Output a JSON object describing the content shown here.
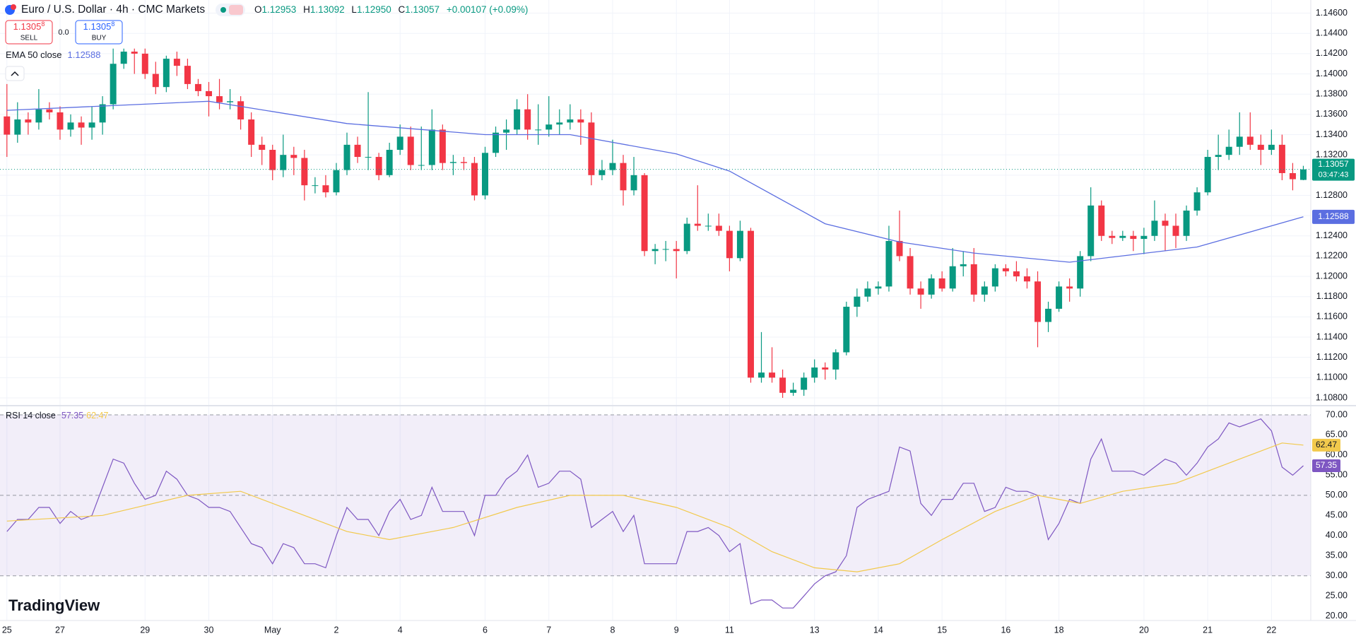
{
  "header": {
    "symbol": "Euro / U.S. Dollar · 4h · CMC Markets",
    "ohlc": [
      {
        "k": "O",
        "v": "1.12953"
      },
      {
        "k": "H",
        "v": "1.13092"
      },
      {
        "k": "L",
        "v": "1.12950"
      },
      {
        "k": "C",
        "v": "1.13057"
      }
    ],
    "change": "+0.00107 (+0.09%)"
  },
  "trade": {
    "sell_price": "1.1305",
    "sell_sup": "8",
    "sell": "SELL",
    "spread": "0.0",
    "buy_price": "1.1305",
    "buy_sup": "8",
    "buy": "BUY"
  },
  "countdown": "03:47:43",
  "logo": "TradingView",
  "chart_data": [
    {
      "type": "candlestick",
      "up_color": "#089981",
      "down_color": "#f23645",
      "candles": [
        [
          1.1358,
          1.139,
          1.1318,
          1.134
        ],
        [
          1.134,
          1.1372,
          1.1332,
          1.1355
        ],
        [
          1.1355,
          1.1362,
          1.134,
          1.1352
        ],
        [
          1.1352,
          1.1385,
          1.1345,
          1.1365
        ],
        [
          1.1365,
          1.1372,
          1.1355,
          1.1362
        ],
        [
          1.1362,
          1.1368,
          1.1335,
          1.1345
        ],
        [
          1.1345,
          1.136,
          1.1338,
          1.1352
        ],
        [
          1.1352,
          1.1358,
          1.133,
          1.1347
        ],
        [
          1.1347,
          1.1368,
          1.1335,
          1.1352
        ],
        [
          1.1352,
          1.1378,
          1.134,
          1.137
        ],
        [
          1.137,
          1.1425,
          1.1365,
          1.141
        ],
        [
          1.141,
          1.1425,
          1.1405,
          1.1422
        ],
        [
          1.1422,
          1.1425,
          1.14,
          1.142
        ],
        [
          1.142,
          1.1425,
          1.1395,
          1.14
        ],
        [
          1.14,
          1.1412,
          1.138,
          1.1387
        ],
        [
          1.1387,
          1.1418,
          1.1382,
          1.1415
        ],
        [
          1.1415,
          1.1422,
          1.1398,
          1.1408
        ],
        [
          1.1408,
          1.1415,
          1.1385,
          1.139
        ],
        [
          1.139,
          1.1395,
          1.1378,
          1.1383
        ],
        [
          1.1383,
          1.1392,
          1.1358,
          1.1378
        ],
        [
          1.1378,
          1.1395,
          1.1365,
          1.1372
        ],
        [
          1.1372,
          1.1385,
          1.1365,
          1.1373
        ],
        [
          1.1373,
          1.1378,
          1.1345,
          1.1355
        ],
        [
          1.1355,
          1.1362,
          1.1318,
          1.133
        ],
        [
          1.133,
          1.1338,
          1.131,
          1.1325
        ],
        [
          1.1325,
          1.133,
          1.1295,
          1.1305
        ],
        [
          1.1305,
          1.134,
          1.1298,
          1.132
        ],
        [
          1.132,
          1.1328,
          1.13,
          1.1317
        ],
        [
          1.1317,
          1.1325,
          1.1275,
          1.129
        ],
        [
          1.129,
          1.1298,
          1.1282,
          1.129
        ],
        [
          1.129,
          1.13,
          1.1278,
          1.1283
        ],
        [
          1.1283,
          1.1312,
          1.128,
          1.1305
        ],
        [
          1.1305,
          1.1342,
          1.13,
          1.133
        ],
        [
          1.133,
          1.1338,
          1.1312,
          1.1318
        ],
        [
          1.1318,
          1.1382,
          1.1305,
          1.1318
        ],
        [
          1.1318,
          1.1322,
          1.1295,
          1.13
        ],
        [
          1.13,
          1.1332,
          1.1298,
          1.1325
        ],
        [
          1.1325,
          1.135,
          1.132,
          1.1338
        ],
        [
          1.1338,
          1.1348,
          1.1305,
          1.131
        ],
        [
          1.131,
          1.1348,
          1.1305,
          1.131
        ],
        [
          1.131,
          1.1365,
          1.1305,
          1.1345
        ],
        [
          1.1345,
          1.135,
          1.1305,
          1.1312
        ],
        [
          1.1312,
          1.132,
          1.13,
          1.1313
        ],
        [
          1.1313,
          1.1318,
          1.1305,
          1.1312
        ],
        [
          1.1312,
          1.1318,
          1.1275,
          1.128
        ],
        [
          1.128,
          1.1328,
          1.1276,
          1.1322
        ],
        [
          1.1322,
          1.1348,
          1.1318,
          1.1342
        ],
        [
          1.1342,
          1.1355,
          1.1325,
          1.1345
        ],
        [
          1.1345,
          1.1375,
          1.134,
          1.1365
        ],
        [
          1.1365,
          1.138,
          1.1335,
          1.1345
        ],
        [
          1.1345,
          1.137,
          1.133,
          1.1345
        ],
        [
          1.1345,
          1.1378,
          1.1338,
          1.135
        ],
        [
          1.135,
          1.1365,
          1.134,
          1.1352
        ],
        [
          1.1352,
          1.137,
          1.1345,
          1.1355
        ],
        [
          1.1355,
          1.1365,
          1.133,
          1.1352
        ],
        [
          1.1352,
          1.1362,
          1.129,
          1.13
        ],
        [
          1.13,
          1.1315,
          1.1295,
          1.1305
        ],
        [
          1.1305,
          1.1335,
          1.13,
          1.1312
        ],
        [
          1.1312,
          1.132,
          1.127,
          1.1285
        ],
        [
          1.1285,
          1.1318,
          1.128,
          1.13
        ],
        [
          1.13,
          1.1302,
          1.122,
          1.1225
        ],
        [
          1.1225,
          1.1232,
          1.1212,
          1.1227
        ],
        [
          1.1227,
          1.1235,
          1.1215,
          1.1227
        ],
        [
          1.1227,
          1.1235,
          1.1198,
          1.1225
        ],
        [
          1.1225,
          1.1258,
          1.1222,
          1.1252
        ],
        [
          1.1252,
          1.129,
          1.1245,
          1.125
        ],
        [
          1.125,
          1.1262,
          1.1245,
          1.125
        ],
        [
          1.125,
          1.1262,
          1.124,
          1.1245
        ],
        [
          1.1245,
          1.125,
          1.1205,
          1.1218
        ],
        [
          1.1218,
          1.1255,
          1.1215,
          1.1245
        ],
        [
          1.1245,
          1.1248,
          1.1095,
          1.11
        ],
        [
          1.11,
          1.1145,
          1.1095,
          1.1105
        ],
        [
          1.1105,
          1.113,
          1.1095,
          1.11
        ],
        [
          1.11,
          1.1108,
          1.108,
          1.1085
        ],
        [
          1.1085,
          1.1095,
          1.1082,
          1.1088
        ],
        [
          1.1088,
          1.1105,
          1.1082,
          1.11
        ],
        [
          1.11,
          1.1118,
          1.1095,
          1.111
        ],
        [
          1.111,
          1.1115,
          1.1098,
          1.1108
        ],
        [
          1.1108,
          1.1128,
          1.1098,
          1.1125
        ],
        [
          1.1125,
          1.1175,
          1.1122,
          1.117
        ],
        [
          1.117,
          1.1188,
          1.116,
          1.118
        ],
        [
          1.118,
          1.1195,
          1.1175,
          1.1188
        ],
        [
          1.1188,
          1.1195,
          1.1182,
          1.119
        ],
        [
          1.119,
          1.125,
          1.1185,
          1.1235
        ],
        [
          1.1235,
          1.1265,
          1.1215,
          1.122
        ],
        [
          1.122,
          1.1228,
          1.1182,
          1.1188
        ],
        [
          1.1188,
          1.1195,
          1.1168,
          1.1182
        ],
        [
          1.1182,
          1.1202,
          1.1178,
          1.1198
        ],
        [
          1.1198,
          1.1205,
          1.1185,
          1.1188
        ],
        [
          1.1188,
          1.1228,
          1.1185,
          1.121
        ],
        [
          1.121,
          1.1225,
          1.12,
          1.1212
        ],
        [
          1.1212,
          1.1228,
          1.1175,
          1.1182
        ],
        [
          1.1182,
          1.1195,
          1.1175,
          1.119
        ],
        [
          1.119,
          1.1212,
          1.1185,
          1.1208
        ],
        [
          1.1208,
          1.1212,
          1.12,
          1.1205
        ],
        [
          1.1205,
          1.1215,
          1.1195,
          1.12
        ],
        [
          1.12,
          1.1208,
          1.1188,
          1.1195
        ],
        [
          1.1195,
          1.1205,
          1.113,
          1.1155
        ],
        [
          1.1155,
          1.1175,
          1.1145,
          1.1168
        ],
        [
          1.1168,
          1.1195,
          1.1165,
          1.119
        ],
        [
          1.119,
          1.1198,
          1.1175,
          1.1188
        ],
        [
          1.1188,
          1.1225,
          1.118,
          1.122
        ],
        [
          1.122,
          1.1288,
          1.1215,
          1.127
        ],
        [
          1.127,
          1.1275,
          1.1235,
          1.124
        ],
        [
          1.124,
          1.1245,
          1.1232,
          1.1238
        ],
        [
          1.1238,
          1.1245,
          1.1235,
          1.124
        ],
        [
          1.124,
          1.1245,
          1.1225,
          1.1237
        ],
        [
          1.1237,
          1.1248,
          1.1222,
          1.124
        ],
        [
          1.124,
          1.1275,
          1.1235,
          1.1255
        ],
        [
          1.1255,
          1.1262,
          1.1225,
          1.125
        ],
        [
          1.125,
          1.1262,
          1.1228,
          1.124
        ],
        [
          1.124,
          1.127,
          1.1235,
          1.1265
        ],
        [
          1.1265,
          1.1288,
          1.126,
          1.1283
        ],
        [
          1.1283,
          1.1325,
          1.128,
          1.1318
        ],
        [
          1.1318,
          1.134,
          1.1305,
          1.132
        ],
        [
          1.132,
          1.1345,
          1.1315,
          1.1328
        ],
        [
          1.1328,
          1.1362,
          1.132,
          1.1338
        ],
        [
          1.1338,
          1.1362,
          1.1325,
          1.133
        ],
        [
          1.133,
          1.134,
          1.131,
          1.1325
        ],
        [
          1.1325,
          1.1345,
          1.132,
          1.133
        ],
        [
          1.133,
          1.134,
          1.1295,
          1.1302
        ],
        [
          1.1302,
          1.1312,
          1.1285,
          1.1296
        ],
        [
          1.12953,
          1.13092,
          1.1295,
          1.13057
        ]
      ],
      "series": [
        {
          "name": "EMA 50 close",
          "color": "#5b6ee1",
          "x": [
            0,
            19,
            32,
            45,
            53,
            63,
            68,
            77,
            84,
            91,
            100,
            112,
            122
          ],
          "values": [
            1.1364,
            1.1373,
            1.1351,
            1.134,
            1.134,
            1.1321,
            1.1304,
            1.1252,
            1.1234,
            1.1223,
            1.1214,
            1.1229,
            1.12588
          ]
        }
      ],
      "xlim": [
        -0.65,
        122.7
      ],
      "ylim": [
        1.1073,
        1.1473
      ],
      "yticks": [
        {
          "value": 1.146,
          "label": "1.14600"
        },
        {
          "value": 1.144,
          "label": "1.14400"
        },
        {
          "value": 1.142,
          "label": "1.14200"
        },
        {
          "value": 1.14,
          "label": "1.14000"
        },
        {
          "value": 1.138,
          "label": "1.13800"
        },
        {
          "value": 1.136,
          "label": "1.13600"
        },
        {
          "value": 1.134,
          "label": "1.13400"
        },
        {
          "value": 1.132,
          "label": "1.13200"
        },
        {
          "value": 1.13,
          "label": "1.13000"
        },
        {
          "value": 1.128,
          "label": "1.12800"
        },
        {
          "value": 1.126,
          "label": "1.12600"
        },
        {
          "value": 1.124,
          "label": "1.12400"
        },
        {
          "value": 1.122,
          "label": "1.12200"
        },
        {
          "value": 1.12,
          "label": "1.12000"
        },
        {
          "value": 1.118,
          "label": "1.11800"
        },
        {
          "value": 1.116,
          "label": "1.11600"
        },
        {
          "value": 1.114,
          "label": "1.11400"
        },
        {
          "value": 1.112,
          "label": "1.11200"
        },
        {
          "value": 1.11,
          "label": "1.11000"
        },
        {
          "value": 1.108,
          "label": "1.10800"
        }
      ],
      "xticks": [
        {
          "value": 0,
          "label": "25"
        },
        {
          "value": 5,
          "label": "27"
        },
        {
          "value": 13,
          "label": "29"
        },
        {
          "value": 19,
          "label": "30"
        },
        {
          "value": 25,
          "label": "May"
        },
        {
          "value": 31,
          "label": "2"
        },
        {
          "value": 37,
          "label": "4"
        },
        {
          "value": 45,
          "label": "6"
        },
        {
          "value": 51,
          "label": "7"
        },
        {
          "value": 57,
          "label": "8"
        },
        {
          "value": 63,
          "label": "9"
        },
        {
          "value": 68,
          "label": "11"
        },
        {
          "value": 76,
          "label": "13"
        },
        {
          "value": 82,
          "label": "14"
        },
        {
          "value": 88,
          "label": "15"
        },
        {
          "value": 94,
          "label": "16"
        },
        {
          "value": 99,
          "label": "18"
        },
        {
          "value": 107,
          "label": "20"
        },
        {
          "value": 113,
          "label": "21"
        },
        {
          "value": 119,
          "label": "22"
        }
      ],
      "grid": true
    },
    {
      "type": "rsi",
      "series": [
        {
          "name": "RSI 14 close",
          "color": "#7e57c2",
          "values": [
            41,
            44,
            44,
            47,
            47,
            43,
            46,
            44,
            45,
            52,
            59,
            58,
            53,
            49,
            50,
            56,
            54,
            50,
            49,
            47,
            47,
            46,
            42,
            38,
            37,
            33,
            38,
            37,
            33,
            33,
            32,
            40,
            47,
            44,
            44,
            40,
            46,
            49,
            44,
            45,
            52,
            46,
            46,
            46,
            40,
            50,
            50,
            54,
            56,
            60,
            52,
            53,
            56,
            56,
            54,
            42,
            44,
            46,
            41,
            45,
            33,
            33,
            33,
            33,
            41,
            41,
            42,
            40,
            36,
            38,
            23,
            24,
            24,
            22,
            22,
            25,
            28,
            30,
            31,
            35,
            47,
            49,
            50,
            51,
            62,
            61,
            48,
            45,
            49,
            49,
            53,
            53,
            46,
            47,
            52,
            51,
            51,
            50,
            39,
            43,
            49,
            48,
            59,
            64,
            56,
            56,
            56,
            55,
            57,
            59,
            58,
            55,
            58,
            62,
            64,
            68,
            67,
            68,
            69,
            66,
            57,
            55,
            57.35
          ]
        },
        {
          "color": "#f2c94c",
          "x": [
            0,
            9,
            17,
            22,
            27,
            32,
            36,
            42,
            48,
            53,
            58,
            63,
            68,
            72,
            76,
            80,
            84,
            88,
            93,
            97,
            101,
            105,
            110,
            116,
            120,
            122
          ],
          "values": [
            43.6,
            45,
            50,
            51,
            46,
            41,
            39,
            42,
            47,
            50,
            50,
            47,
            42,
            36,
            32,
            31,
            33,
            39,
            46,
            50,
            48,
            51,
            53,
            59,
            63,
            62.47
          ]
        }
      ],
      "levels": [
        30,
        50,
        70
      ],
      "band_color": "#7e57c2",
      "ylim": [
        18.9,
        72.1
      ],
      "yticks": [
        {
          "value": 70,
          "label": "70.00"
        },
        {
          "value": 65,
          "label": "65.00"
        },
        {
          "value": 60,
          "label": "60.00"
        },
        {
          "value": 55,
          "label": "55.00"
        },
        {
          "value": 50,
          "label": "50.00"
        },
        {
          "value": 45,
          "label": "45.00"
        },
        {
          "value": 40,
          "label": "40.00"
        },
        {
          "value": 35,
          "label": "35.00"
        },
        {
          "value": 30,
          "label": "30.00"
        },
        {
          "value": 25,
          "label": "25.00"
        },
        {
          "value": 20,
          "label": "20.00"
        }
      ]
    }
  ]
}
